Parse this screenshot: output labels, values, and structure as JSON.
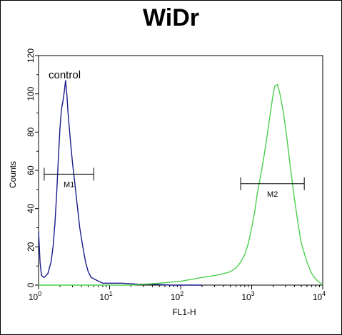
{
  "chart_data": {
    "type": "line",
    "title": "WiDr",
    "xlabel": "FL1-H",
    "ylabel": "Counts",
    "x_scale": "log",
    "xlim": [
      1,
      10000
    ],
    "ylim": [
      0,
      120
    ],
    "x_ticks": [
      {
        "value": 1,
        "base": "10",
        "exp": "0"
      },
      {
        "value": 10,
        "base": "10",
        "exp": "1"
      },
      {
        "value": 100,
        "base": "10",
        "exp": "2"
      },
      {
        "value": 1000,
        "base": "10",
        "exp": "3"
      },
      {
        "value": 10000,
        "base": "10",
        "exp": "4"
      }
    ],
    "y_ticks": [
      0,
      20,
      40,
      60,
      80,
      100,
      120
    ],
    "grid": false,
    "annotations": [
      {
        "text": "control"
      }
    ],
    "markers": [
      {
        "name": "M1",
        "x_range": [
          1.2,
          6
        ],
        "y": 58
      },
      {
        "name": "M2",
        "x_range": [
          700,
          5500
        ],
        "y": 53
      }
    ],
    "series": [
      {
        "color": "#1a1a8c",
        "x": [
          1,
          1.05,
          1.1,
          1.2,
          1.35,
          1.5,
          1.6,
          1.7,
          1.8,
          1.9,
          2.0,
          2.1,
          2.2,
          2.3,
          2.4,
          2.5,
          2.6,
          2.8,
          3.0,
          3.2,
          3.5,
          3.8,
          4.2,
          4.6,
          5.0,
          5.5,
          6.2,
          7.0,
          8.0,
          10,
          15,
          25,
          40,
          70,
          100,
          200
        ],
        "y": [
          28,
          12,
          5,
          4,
          6,
          12,
          20,
          32,
          48,
          66,
          82,
          92,
          96,
          101,
          107,
          100,
          90,
          76,
          64,
          55,
          42,
          30,
          20,
          12,
          7,
          4,
          3,
          2,
          1,
          1,
          1,
          0.5,
          0.5,
          0,
          0,
          0
        ]
      },
      {
        "color": "#4ccf4c",
        "x": [
          1,
          2,
          5,
          10,
          20,
          50,
          100,
          200,
          300,
          400,
          500,
          600,
          700,
          800,
          900,
          1000,
          1100,
          1200,
          1350,
          1500,
          1650,
          1800,
          1950,
          2100,
          2300,
          2500,
          2800,
          3100,
          3500,
          4000,
          4500,
          5000,
          6000,
          7000,
          8000,
          10000
        ],
        "y": [
          0,
          0,
          0,
          0,
          0,
          1,
          2,
          4,
          5,
          6,
          7,
          9,
          12,
          16,
          22,
          30,
          38,
          48,
          58,
          68,
          78,
          88,
          97,
          104,
          105,
          100,
          90,
          78,
          62,
          45,
          32,
          22,
          12,
          6,
          3,
          0
        ]
      }
    ]
  }
}
